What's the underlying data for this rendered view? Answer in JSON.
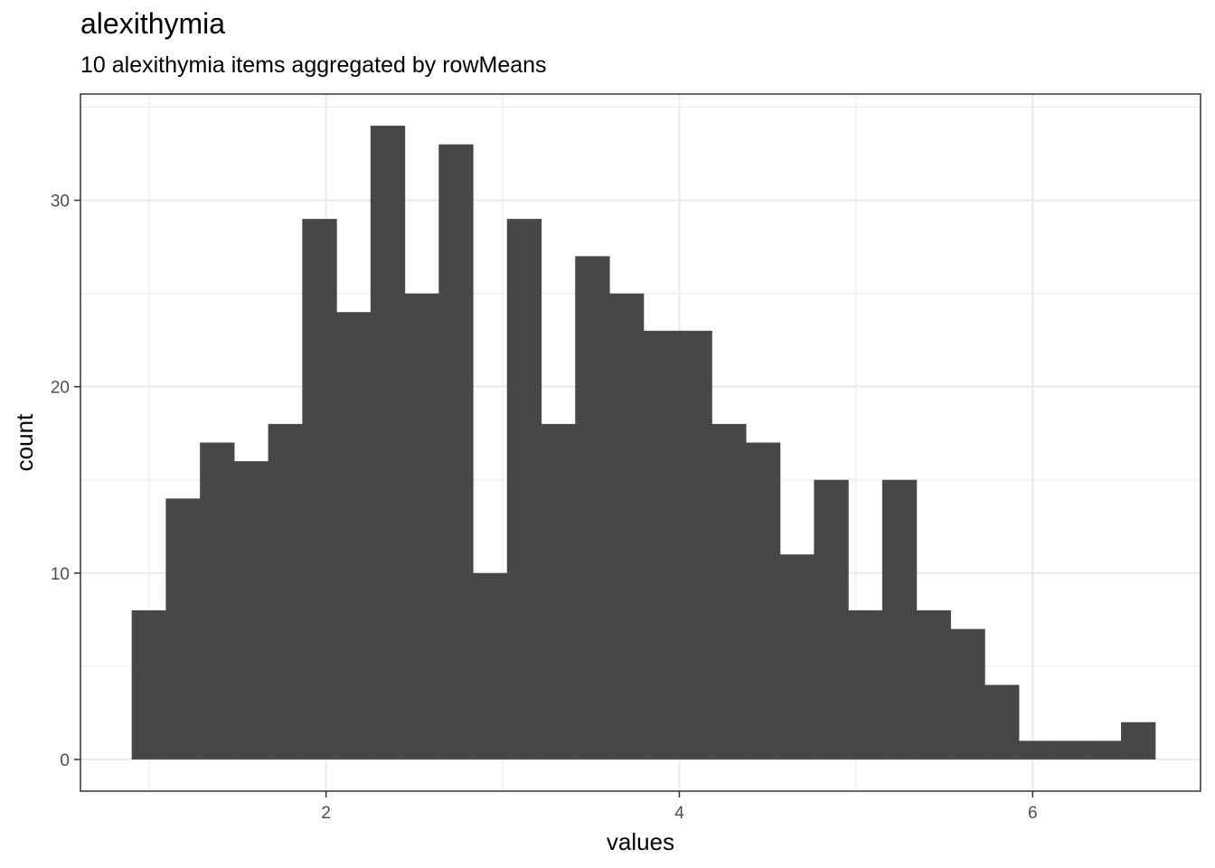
{
  "chart_data": {
    "type": "bar",
    "title": "alexithymia",
    "subtitle": "10 alexithymia items aggregated by rowMeans",
    "xlabel": "values",
    "ylabel": "count",
    "x_start": 0.9,
    "bin_width": 0.1931,
    "values": [
      8,
      14,
      17,
      16,
      18,
      29,
      24,
      34,
      25,
      33,
      10,
      29,
      18,
      27,
      25,
      23,
      23,
      18,
      17,
      11,
      15,
      8,
      15,
      8,
      7,
      4,
      1,
      1,
      1,
      2
    ],
    "xlim": [
      0.61,
      6.95
    ],
    "ylim": [
      -1.7,
      35.7
    ],
    "x_ticks": [
      2,
      4,
      6
    ],
    "y_ticks": [
      0,
      10,
      20,
      30
    ],
    "x_tick_labels": [
      "2",
      "4",
      "6"
    ],
    "y_tick_labels": [
      "0",
      "10",
      "20",
      "30"
    ],
    "grid": true,
    "bar_color": "#474747",
    "grid_color": "#ebebeb",
    "panel_border_color": "#333333"
  }
}
